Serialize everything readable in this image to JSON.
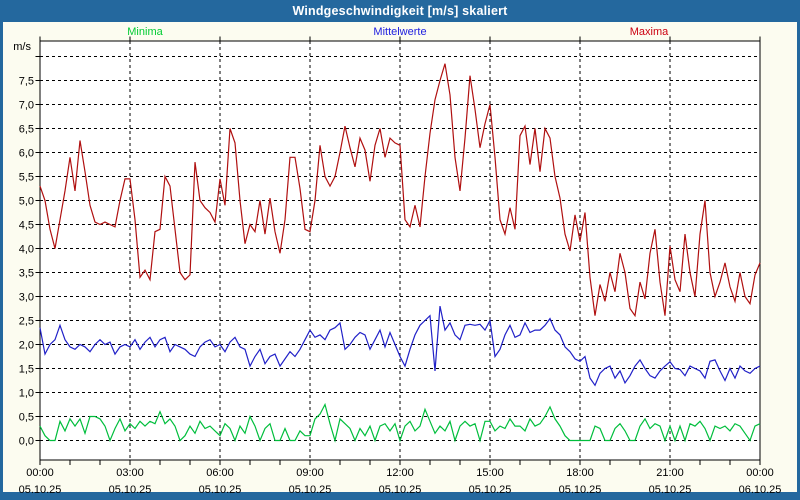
{
  "window": {
    "title": "Windgeschwindigkeit [m/s] skaliert"
  },
  "colors": {
    "titlebar_bg": "#24689E",
    "frame": "#24689E",
    "outer_bg": "#FCFCF0",
    "plot_bg": "#FFFFFF",
    "grid": "#000000",
    "axis_text": "#000000",
    "title_text": "#FFFFFF",
    "minima_line": "#00BE3C",
    "mittelwerte_line": "#2121C8",
    "maxima_line": "#B01010",
    "minima_label": "#00CC33",
    "mittelwerte_label": "#2020E0",
    "maxima_label": "#CC0011"
  },
  "legend": [
    {
      "label": "Minima",
      "color_key": "minima_label"
    },
    {
      "label": "Mittelwerte",
      "color_key": "mittelwerte_label"
    },
    {
      "label": "Maxima",
      "color_key": "maxima_label"
    }
  ],
  "y_axis": {
    "unit": "m/s",
    "tick_labels": [
      "0,0",
      "0,5",
      "1,0",
      "1,5",
      "2,0",
      "2,5",
      "3,0",
      "3,5",
      "4,0",
      "4,5",
      "5,0",
      "5,5",
      "6,0",
      "6,5",
      "7,0",
      "7,5"
    ],
    "tick_values": [
      0,
      0.5,
      1,
      1.5,
      2,
      2.5,
      3,
      3.5,
      4,
      4.5,
      5,
      5.5,
      6,
      6.5,
      7,
      7.5
    ],
    "grid_min": 0,
    "grid_max": 8,
    "grid_step": 0.5
  },
  "x_axis": {
    "major_ticks": [
      {
        "hour": 0,
        "time": "00:00",
        "date": "05.10.25"
      },
      {
        "hour": 3,
        "time": "03:00",
        "date": "05.10.25"
      },
      {
        "hour": 6,
        "time": "06:00",
        "date": "05.10.25"
      },
      {
        "hour": 9,
        "time": "09:00",
        "date": "05.10.25"
      },
      {
        "hour": 12,
        "time": "12:00",
        "date": "05.10.25"
      },
      {
        "hour": 15,
        "time": "15:00",
        "date": "05.10.25"
      },
      {
        "hour": 18,
        "time": "18:00",
        "date": "05.10.25"
      },
      {
        "hour": 21,
        "time": "21:00",
        "date": "05.10.25"
      },
      {
        "hour": 24,
        "time": "00:00",
        "date": "06.10.25"
      }
    ],
    "minor_tick_hours": 1,
    "total_hours": 24
  },
  "chart_data": {
    "type": "line",
    "title": "Windgeschwindigkeit [m/s] skaliert",
    "ylabel": "m/s",
    "ylim": [
      -0.45,
      8.3
    ],
    "x_start_minutes": 0,
    "x_step_minutes": 10,
    "x_total_minutes": 1440,
    "grid": true,
    "legend_position": "top",
    "series": [
      {
        "name": "Minima",
        "color": "#00BE3C",
        "values": [
          0.3,
          0.1,
          0.0,
          0.0,
          0.4,
          0.2,
          0.45,
          0.3,
          0.45,
          0.15,
          0.5,
          0.5,
          0.45,
          0.3,
          0.0,
          0.25,
          0.45,
          0.2,
          0.35,
          0.25,
          0.4,
          0.3,
          0.4,
          0.35,
          0.6,
          0.35,
          0.45,
          0.3,
          0.0,
          0.1,
          0.3,
          0.15,
          0.4,
          0.25,
          0.3,
          0.2,
          0.1,
          0.35,
          0.25,
          0.0,
          0.3,
          0.15,
          0.5,
          0.3,
          0.0,
          0.25,
          0.35,
          0.0,
          0.0,
          0.25,
          0.0,
          0.0,
          0.2,
          0.1,
          0.1,
          0.45,
          0.55,
          0.75,
          0.35,
          0.0,
          0.45,
          0.35,
          0.25,
          0.0,
          0.25,
          0.1,
          0.3,
          0.0,
          0.3,
          0.35,
          0.2,
          0.35,
          0.0,
          0.3,
          0.4,
          0.2,
          0.3,
          0.65,
          0.4,
          0.15,
          0.3,
          0.2,
          0.4,
          0.0,
          0.3,
          0.4,
          0.3,
          0.35,
          0.0,
          0.4,
          0.4,
          0.2,
          0.3,
          0.25,
          0.45,
          0.3,
          0.3,
          0.2,
          0.45,
          0.3,
          0.35,
          0.5,
          0.7,
          0.45,
          0.3,
          0.1,
          0.0,
          0.0,
          0.0,
          0.0,
          0.0,
          0.3,
          0.25,
          0.0,
          0.0,
          0.25,
          0.35,
          0.2,
          0.0,
          0.0,
          0.3,
          0.45,
          0.25,
          0.35,
          0.3,
          0.0,
          0.3,
          0.0,
          0.3,
          0.0,
          0.35,
          0.3,
          0.4,
          0.25,
          0.0,
          0.3,
          0.25,
          0.3,
          0.2,
          0.35,
          0.3,
          0.15,
          0.0,
          0.3,
          0.35
        ]
      },
      {
        "name": "Mittelwerte",
        "color": "#2121C8",
        "values": [
          2.35,
          1.8,
          2.0,
          2.1,
          2.4,
          2.1,
          1.95,
          1.9,
          2.0,
          1.95,
          1.85,
          2.0,
          2.1,
          2.0,
          2.05,
          1.8,
          1.95,
          2.0,
          1.95,
          2.1,
          1.9,
          2.05,
          2.15,
          1.95,
          2.1,
          2.15,
          1.85,
          2.0,
          1.95,
          1.9,
          1.8,
          1.75,
          1.95,
          2.05,
          2.1,
          1.95,
          2.0,
          1.85,
          2.05,
          2.15,
          1.95,
          1.9,
          1.55,
          1.75,
          1.9,
          1.6,
          1.75,
          1.8,
          1.55,
          1.7,
          1.85,
          1.75,
          1.9,
          2.1,
          2.3,
          2.15,
          2.2,
          2.1,
          2.3,
          2.35,
          2.45,
          1.9,
          2.0,
          2.15,
          2.25,
          2.2,
          1.9,
          2.1,
          2.3,
          1.95,
          2.25,
          2.0,
          1.75,
          1.55,
          1.9,
          2.2,
          2.4,
          2.5,
          2.6,
          1.45,
          2.8,
          2.3,
          2.45,
          2.2,
          2.1,
          2.4,
          2.42,
          2.4,
          2.42,
          2.3,
          2.5,
          1.75,
          1.9,
          2.2,
          2.4,
          2.15,
          2.2,
          2.45,
          2.25,
          2.3,
          2.3,
          2.4,
          2.54,
          2.3,
          2.2,
          1.95,
          1.85,
          1.7,
          1.65,
          1.75,
          1.3,
          1.15,
          1.4,
          1.5,
          1.55,
          1.3,
          1.45,
          1.2,
          1.35,
          1.55,
          1.68,
          1.5,
          1.35,
          1.3,
          1.45,
          1.55,
          1.64,
          1.5,
          1.48,
          1.35,
          1.55,
          1.5,
          1.45,
          1.3,
          1.65,
          1.68,
          1.45,
          1.25,
          1.5,
          1.3,
          1.55,
          1.45,
          1.4,
          1.5,
          1.55
        ]
      },
      {
        "name": "Maxima",
        "color": "#B01010",
        "values": [
          5.3,
          5.0,
          4.4,
          4.0,
          4.6,
          5.2,
          5.9,
          5.2,
          6.25,
          5.6,
          4.9,
          4.55,
          4.5,
          4.55,
          4.5,
          4.45,
          5.0,
          5.45,
          5.45,
          4.6,
          3.4,
          3.55,
          3.35,
          4.35,
          4.4,
          5.5,
          5.3,
          4.4,
          3.5,
          3.35,
          3.45,
          5.8,
          5.0,
          4.85,
          4.75,
          4.55,
          5.45,
          4.9,
          6.5,
          6.2,
          5.0,
          4.1,
          4.5,
          4.35,
          5.0,
          4.3,
          5.05,
          4.35,
          3.9,
          4.6,
          5.9,
          5.9,
          5.25,
          4.4,
          4.35,
          5.0,
          6.15,
          5.5,
          5.3,
          5.5,
          6.0,
          6.55,
          6.1,
          5.7,
          6.3,
          6.05,
          5.4,
          6.15,
          6.5,
          5.9,
          6.3,
          6.2,
          6.15,
          4.6,
          4.45,
          4.9,
          4.45,
          5.5,
          6.4,
          7.1,
          7.5,
          7.85,
          7.2,
          5.9,
          5.2,
          6.3,
          7.6,
          6.9,
          6.1,
          6.6,
          7.0,
          5.9,
          4.6,
          4.3,
          4.85,
          4.4,
          6.35,
          6.55,
          5.75,
          6.5,
          5.6,
          6.5,
          6.3,
          5.5,
          5.05,
          4.3,
          3.95,
          4.7,
          4.15,
          4.75,
          3.4,
          2.6,
          3.25,
          2.9,
          3.5,
          3.1,
          3.9,
          3.5,
          2.75,
          2.6,
          3.3,
          2.95,
          3.9,
          4.4,
          3.3,
          2.6,
          4.05,
          3.35,
          3.1,
          4.3,
          3.5,
          3.0,
          4.3,
          5.0,
          3.5,
          3.0,
          3.3,
          3.7,
          3.2,
          2.9,
          3.5,
          3.0,
          2.85,
          3.45,
          3.7
        ]
      }
    ]
  }
}
